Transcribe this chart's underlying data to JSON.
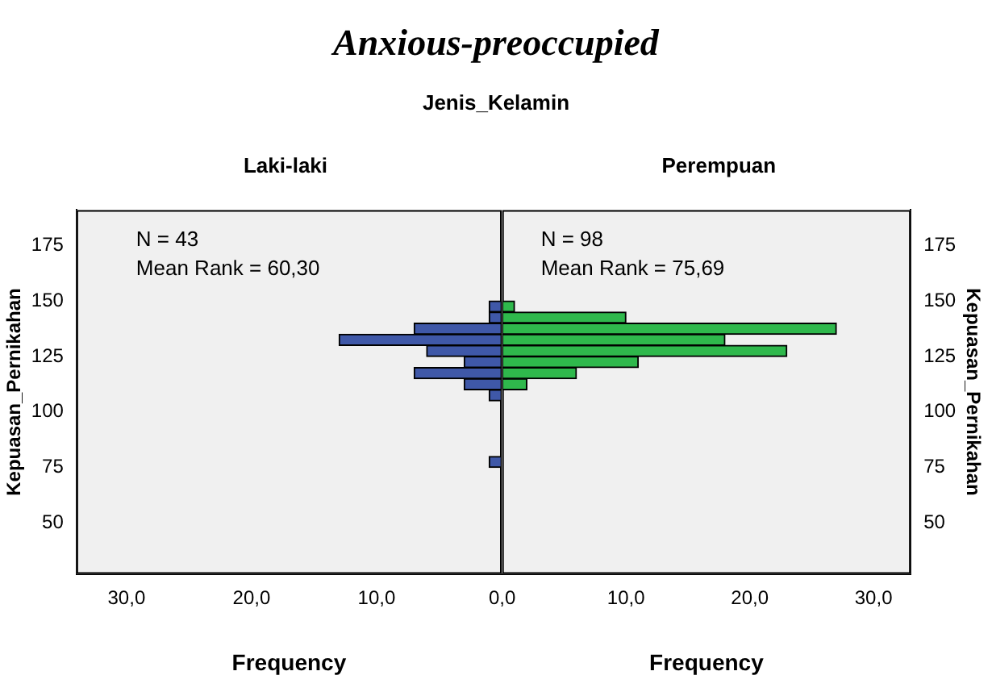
{
  "chart_data": [
    {
      "type": "histogram",
      "orientation": "horizontal",
      "title": "Anxious-preoccupied",
      "subtitle": "Jenis_Kelamin",
      "xlabel": "Frequency",
      "ylabel": "Kepuasan_Pernikahan",
      "annotations": [
        "Laki-laki",
        "N = 43",
        "Mean Rank = 60,30"
      ],
      "bins": [
        75,
        80,
        85,
        90,
        95,
        100,
        105,
        110,
        115,
        120,
        125,
        130,
        135,
        140,
        145,
        150
      ],
      "values": [
        1,
        0,
        0,
        0,
        0,
        0,
        1,
        3,
        7,
        3,
        6,
        13,
        7,
        1,
        1
      ],
      "color": "#3f58a8",
      "xlim": [
        34,
        0
      ],
      "xticks": [
        {
          "value": 30,
          "label": "30,0"
        },
        {
          "value": 20,
          "label": "20,0"
        },
        {
          "value": 10,
          "label": "10,0"
        },
        {
          "value": 0,
          "label": null
        }
      ],
      "ylim": [
        27,
        191
      ],
      "yticks": [
        50,
        75,
        100,
        125,
        150,
        175
      ]
    },
    {
      "type": "histogram",
      "orientation": "horizontal",
      "xlabel": "Frequency",
      "ylabel": "Kepuasan_Pernikahan",
      "annotations": [
        "Perempuan",
        "N = 98",
        "Mean Rank = 75,69"
      ],
      "bins": [
        75,
        80,
        85,
        90,
        95,
        100,
        105,
        110,
        115,
        120,
        125,
        130,
        135,
        140,
        145,
        150
      ],
      "values": [
        0,
        0,
        0,
        0,
        0,
        0,
        0,
        2,
        6,
        11,
        23,
        18,
        27,
        10,
        1
      ],
      "color": "#2fb84c",
      "xlim": [
        0,
        33
      ],
      "xticks": [
        {
          "value": 0,
          "label": "0,0"
        },
        {
          "value": 10,
          "label": "10,0"
        },
        {
          "value": 20,
          "label": "20,0"
        },
        {
          "value": 30,
          "label": "30,0"
        }
      ],
      "ylim": [
        27,
        191
      ],
      "yticks": [
        50,
        75,
        100,
        125,
        150,
        175
      ]
    }
  ]
}
